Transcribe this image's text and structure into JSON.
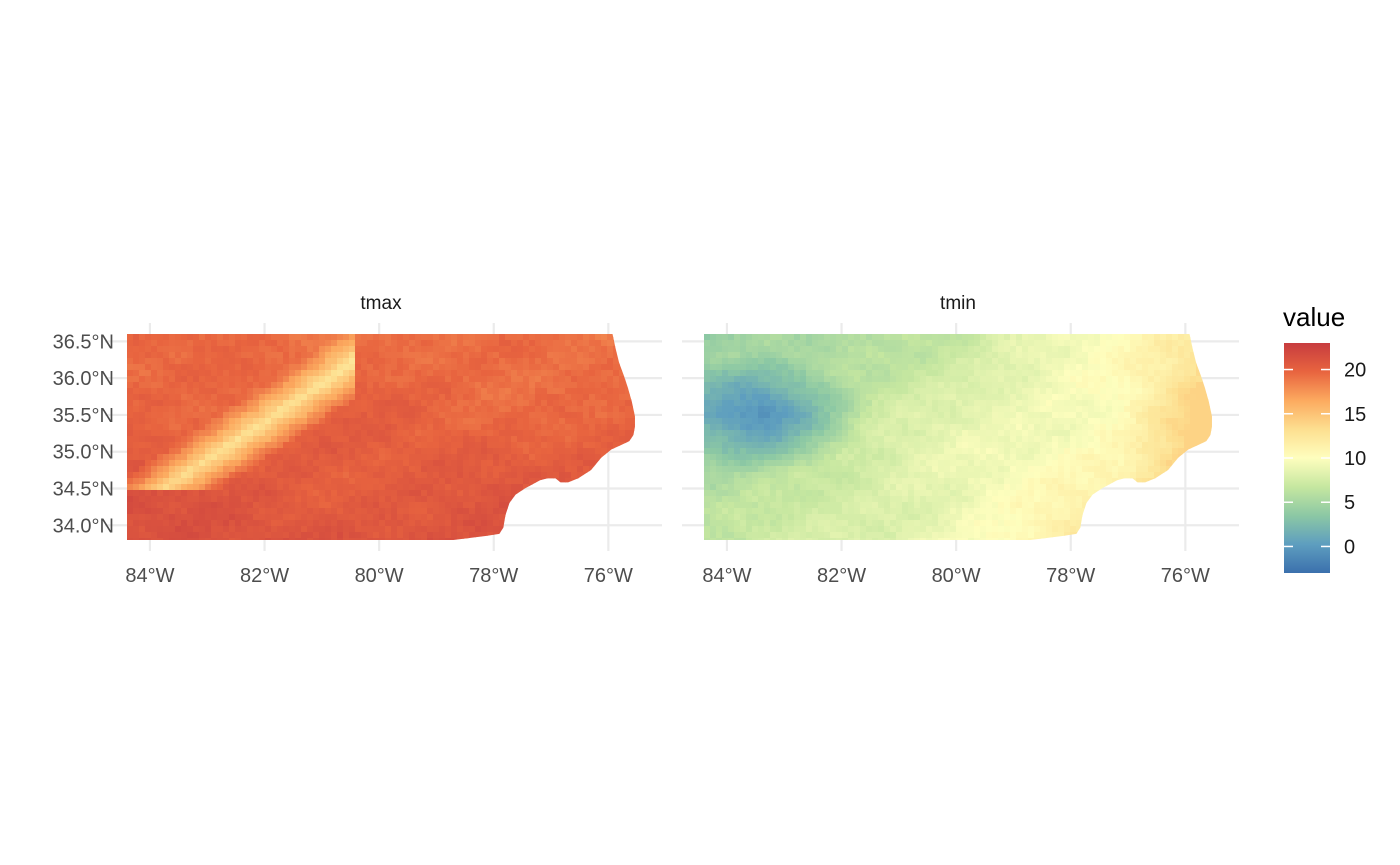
{
  "chart_data": {
    "type": "heatmap",
    "facets": [
      {
        "name": "tmax",
        "min": 10,
        "max": 23,
        "mean": 17,
        "description_values": "mostly 15-22, coolest (about 10-13) along the mountainous northwest ridge"
      },
      {
        "name": "tmin",
        "min": -3,
        "max": 14,
        "mean": 7,
        "description_values": "coolest (about -2 to 2) in the southwest mountains, warmest (12-14) along the eastern coast"
      }
    ],
    "x_axis": {
      "ticks": [
        -84,
        -82,
        -80,
        -78,
        -76
      ],
      "tick_labels": [
        "84°W",
        "82°W",
        "80°W",
        "78°W",
        "76°W"
      ],
      "range": [
        -84.4,
        -75.5
      ]
    },
    "y_axis": {
      "ticks": [
        34.0,
        34.5,
        35.0,
        35.5,
        36.0,
        36.5
      ],
      "tick_labels": [
        "34.0°N",
        "34.5°N",
        "35.0°N",
        "35.5°N",
        "36.0°N",
        "36.5°N"
      ],
      "range": [
        33.8,
        36.6
      ]
    },
    "legend": {
      "title": "value",
      "placement": "right",
      "ticks": [
        0,
        5,
        10,
        15,
        20
      ],
      "tick_labels": [
        "0",
        "5",
        "10",
        "15",
        "20"
      ],
      "range": [
        -3,
        23
      ],
      "palette": [
        "#3b70ad",
        "#5e9ebf",
        "#8cc8a4",
        "#c6e7a0",
        "#fefebe",
        "#fddf90",
        "#fcaa5f",
        "#e8643f",
        "#c73c3f"
      ]
    },
    "grid": true
  }
}
